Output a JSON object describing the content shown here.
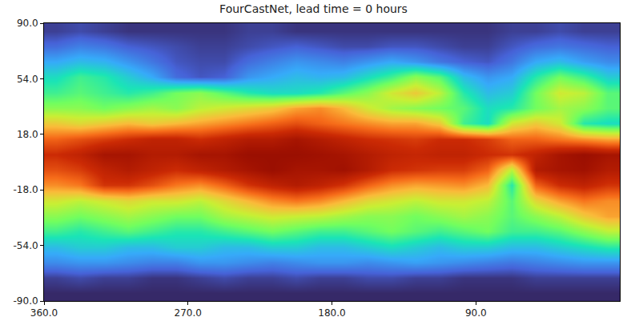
{
  "chart_data": {
    "type": "heatmap",
    "title": "FourCastNet, lead time = 0 hours",
    "x": [
      352.5,
      337.5,
      322.5,
      307.5,
      292.5,
      277.5,
      262.5,
      247.5,
      232.5,
      217.5,
      202.5,
      187.5,
      172.5,
      157.5,
      142.5,
      127.5,
      112.5,
      97.5,
      82.5,
      67.5,
      52.5,
      37.5,
      22.5,
      7.5
    ],
    "y": [
      85,
      75,
      65,
      55,
      45,
      35,
      25,
      15,
      5,
      -5,
      -15,
      -25,
      -35,
      -45,
      -55,
      -65,
      -75,
      -85
    ],
    "cells": [
      [
        4,
        5,
        4,
        3,
        3,
        3,
        3,
        3,
        4,
        4,
        3,
        3,
        3,
        3,
        3,
        3,
        3,
        3,
        3,
        4,
        4,
        5,
        4,
        4
      ],
      [
        8,
        10,
        9,
        7,
        6,
        5,
        4,
        4,
        5,
        6,
        7,
        6,
        5,
        5,
        6,
        6,
        5,
        4,
        4,
        6,
        8,
        9,
        8,
        7
      ],
      [
        14,
        16,
        15,
        12,
        9,
        6,
        5,
        5,
        8,
        10,
        12,
        11,
        10,
        12,
        14,
        12,
        9,
        7,
        6,
        9,
        14,
        16,
        13,
        11
      ],
      [
        20,
        24,
        22,
        18,
        14,
        8,
        6,
        7,
        12,
        14,
        16,
        15,
        16,
        20,
        24,
        30,
        26,
        16,
        12,
        14,
        22,
        28,
        24,
        18
      ],
      [
        24,
        26,
        24,
        22,
        24,
        28,
        30,
        26,
        22,
        20,
        20,
        22,
        26,
        30,
        36,
        40,
        34,
        22,
        16,
        18,
        28,
        36,
        34,
        26
      ],
      [
        30,
        30,
        28,
        30,
        32,
        30,
        34,
        36,
        38,
        40,
        44,
        46,
        42,
        36,
        32,
        30,
        28,
        26,
        20,
        22,
        28,
        32,
        30,
        26
      ],
      [
        40,
        38,
        40,
        42,
        40,
        42,
        44,
        46,
        48,
        50,
        52,
        50,
        48,
        46,
        44,
        44,
        40,
        24,
        20,
        36,
        40,
        36,
        22,
        20
      ],
      [
        50,
        52,
        54,
        56,
        58,
        58,
        56,
        58,
        60,
        60,
        62,
        60,
        58,
        56,
        55,
        54,
        56,
        56,
        54,
        50,
        50,
        48,
        46,
        44
      ],
      [
        56,
        58,
        62,
        62,
        60,
        60,
        62,
        62,
        64,
        64,
        64,
        63,
        62,
        60,
        58,
        57,
        58,
        58,
        56,
        55,
        58,
        62,
        64,
        62
      ],
      [
        52,
        54,
        58,
        60,
        58,
        56,
        58,
        60,
        62,
        64,
        62,
        62,
        63,
        60,
        56,
        55,
        54,
        54,
        50,
        34,
        60,
        62,
        63,
        60
      ],
      [
        46,
        48,
        55,
        55,
        52,
        48,
        46,
        50,
        55,
        58,
        60,
        58,
        55,
        50,
        46,
        44,
        45,
        46,
        42,
        22,
        50,
        56,
        58,
        55
      ],
      [
        36,
        34,
        36,
        38,
        36,
        36,
        34,
        38,
        42,
        46,
        48,
        46,
        42,
        38,
        36,
        34,
        36,
        36,
        34,
        26,
        38,
        44,
        48,
        46
      ],
      [
        30,
        28,
        30,
        32,
        30,
        28,
        28,
        32,
        34,
        36,
        35,
        34,
        32,
        30,
        30,
        28,
        30,
        32,
        30,
        26,
        30,
        34,
        40,
        44
      ],
      [
        24,
        22,
        24,
        26,
        24,
        22,
        22,
        24,
        26,
        28,
        26,
        24,
        24,
        26,
        28,
        26,
        24,
        26,
        28,
        24,
        24,
        26,
        30,
        34
      ],
      [
        16,
        18,
        18,
        16,
        16,
        18,
        18,
        16,
        16,
        18,
        18,
        16,
        16,
        18,
        20,
        18,
        16,
        18,
        18,
        16,
        16,
        18,
        20,
        22
      ],
      [
        11,
        12,
        12,
        11,
        10,
        10,
        12,
        12,
        11,
        10,
        11,
        12,
        12,
        11,
        12,
        13,
        12,
        11,
        10,
        9,
        10,
        11,
        12,
        12
      ],
      [
        4,
        5,
        4,
        4,
        3,
        3,
        4,
        5,
        4,
        4,
        5,
        4,
        4,
        5,
        5,
        4,
        4,
        3,
        3,
        3,
        4,
        4,
        4,
        4
      ],
      [
        2,
        2,
        2,
        2,
        2,
        2,
        2,
        2,
        2,
        2,
        2,
        2,
        2,
        2,
        2,
        2,
        2,
        2,
        2,
        2,
        2,
        2,
        2,
        2
      ]
    ],
    "zlim": [
      0,
      70
    ],
    "xlim": [
      360,
      0
    ],
    "ylim": [
      -90,
      90
    ],
    "xticks": [
      {
        "value": 360,
        "label": "360.0"
      },
      {
        "value": 270,
        "label": "270.0"
      },
      {
        "value": 180,
        "label": "180.0"
      },
      {
        "value": 90,
        "label": "90.0"
      }
    ],
    "yticks": [
      {
        "value": -90,
        "label": "-90.0"
      },
      {
        "value": -54,
        "label": "-54.0"
      },
      {
        "value": -18,
        "label": "-18.0"
      },
      {
        "value": 18,
        "label": "18.0"
      },
      {
        "value": 54,
        "label": "54.0"
      },
      {
        "value": 90,
        "label": "90.0"
      }
    ],
    "grid": false
  }
}
